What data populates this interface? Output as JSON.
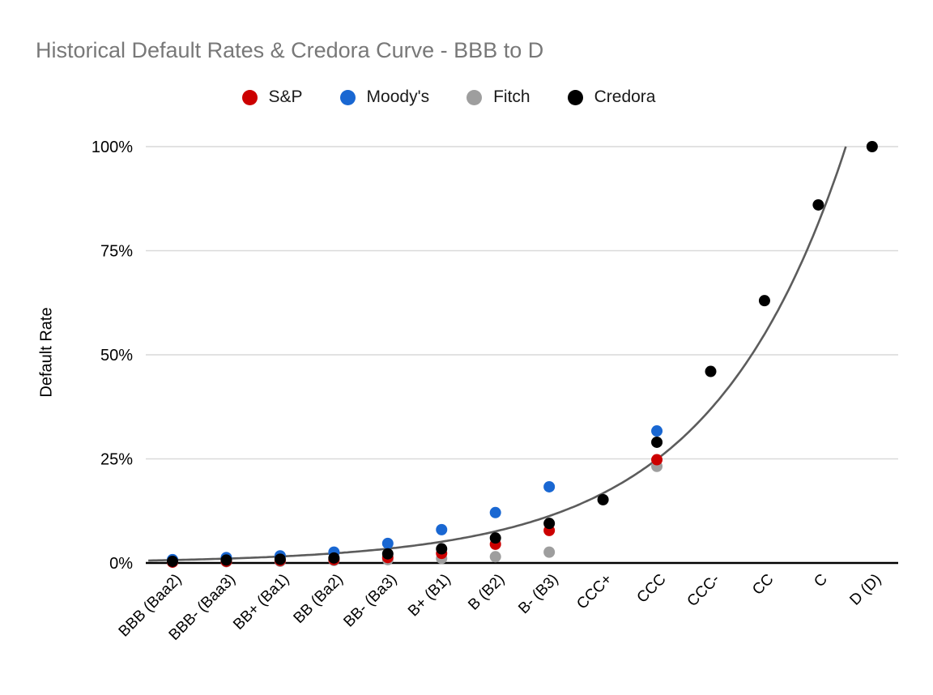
{
  "title": "Historical Default Rates & Credora Curve - BBB to D",
  "chart_data": {
    "type": "scatter",
    "title": "Historical Default Rates & Credora Curve - BBB to D",
    "xlabel": "",
    "ylabel": "Default Rate",
    "ylim": [
      0,
      100
    ],
    "grid": "horizontal",
    "legend_position": "top",
    "y_ticks": [
      {
        "label": "0%",
        "value": 0
      },
      {
        "label": "25%",
        "value": 25
      },
      {
        "label": "50%",
        "value": 50
      },
      {
        "label": "75%",
        "value": 75
      },
      {
        "label": "100%",
        "value": 100
      }
    ],
    "categories": [
      "BBB (Baa2)",
      "BBB- (Baa3)",
      "BB+ (Ba1)",
      "BB (Ba2)",
      "BB- (Ba3)",
      "B+ (B1)",
      "B (B2)",
      "B- (B3)",
      "CCC+",
      "CCC",
      "CCC-",
      "CC",
      "C",
      "D (D)"
    ],
    "series": [
      {
        "name": "S&P",
        "color": "#cc0000",
        "values": [
          0.2,
          0.4,
          0.6,
          0.8,
          1.3,
          2.3,
          4.5,
          7.8,
          null,
          24.8,
          null,
          null,
          null,
          null
        ]
      },
      {
        "name": "Moody's",
        "color": "#1967d2",
        "values": [
          0.8,
          1.3,
          1.7,
          2.6,
          4.7,
          8.0,
          12.1,
          18.3,
          null,
          31.7,
          null,
          null,
          null,
          null
        ]
      },
      {
        "name": "Fitch",
        "color": "#9e9e9e",
        "values": [
          0.2,
          0.3,
          0.4,
          0.6,
          0.8,
          1.1,
          1.5,
          2.6,
          null,
          23.2,
          null,
          null,
          null,
          null
        ]
      },
      {
        "name": "Credora",
        "color": "#000000",
        "values": [
          0.4,
          0.7,
          0.9,
          1.2,
          2.2,
          3.4,
          6.0,
          9.5,
          15.2,
          29.0,
          46.0,
          63.0,
          86.0,
          100.0
        ]
      }
    ],
    "curve": {
      "label": "Credora Curve",
      "color": "#5c5c5c",
      "fit": "exponential",
      "a": 0.705,
      "b": 0.396,
      "clip_max": 100
    },
    "colors": {
      "gridline": "#d9d9d9",
      "axis_line": "#000000",
      "title_text": "#787878",
      "tick_text": "#000000"
    }
  }
}
